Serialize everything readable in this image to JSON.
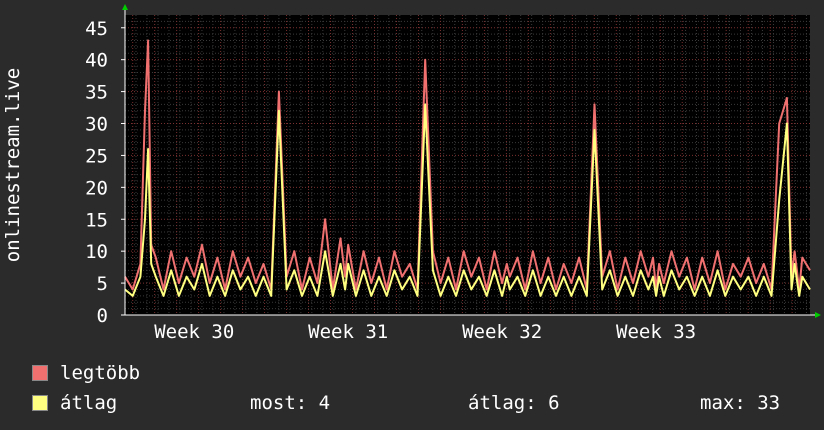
{
  "chart_data": {
    "type": "line",
    "ylabel": "onlinestream.live",
    "ylim": [
      0,
      47
    ],
    "yticks": [
      0,
      5,
      10,
      15,
      20,
      25,
      30,
      35,
      40,
      45
    ],
    "xlim": [
      28.55,
      33.0
    ],
    "xticks": [
      {
        "value": 29.0,
        "label": "Week 30"
      },
      {
        "value": 30.0,
        "label": "Week 31"
      },
      {
        "value": 31.0,
        "label": "Week 32"
      },
      {
        "value": 32.0,
        "label": "Week 33"
      }
    ],
    "series": [
      {
        "name": "legtöbb",
        "color": "#f07070",
        "x": [
          28.55,
          28.6,
          28.65,
          28.68,
          28.7,
          28.72,
          28.75,
          28.8,
          28.85,
          28.9,
          28.95,
          29.0,
          29.05,
          29.1,
          29.15,
          29.2,
          29.25,
          29.3,
          29.35,
          29.4,
          29.45,
          29.5,
          29.55,
          29.6,
          29.65,
          29.7,
          29.75,
          29.8,
          29.85,
          29.9,
          29.95,
          29.98,
          30.0,
          30.05,
          30.1,
          30.15,
          30.2,
          30.25,
          30.3,
          30.35,
          30.4,
          30.45,
          30.5,
          30.55,
          30.6,
          30.65,
          30.7,
          30.75,
          30.8,
          30.85,
          30.9,
          30.95,
          31.0,
          31.03,
          31.05,
          31.1,
          31.15,
          31.2,
          31.25,
          31.3,
          31.35,
          31.4,
          31.45,
          31.5,
          31.55,
          31.6,
          31.65,
          31.7,
          31.75,
          31.8,
          31.85,
          31.9,
          31.95,
          31.98,
          32.0,
          32.02,
          32.05,
          32.1,
          32.15,
          32.2,
          32.25,
          32.3,
          32.35,
          32.4,
          32.45,
          32.5,
          32.55,
          32.6,
          32.65,
          32.7,
          32.75,
          32.8,
          32.85,
          32.88,
          32.9,
          32.93,
          32.95,
          33.0
        ],
        "y": [
          6,
          4,
          8,
          32,
          43,
          11,
          9,
          4,
          10,
          5,
          9,
          6,
          11,
          5,
          9,
          4,
          10,
          6,
          9,
          5,
          8,
          4,
          35,
          6,
          10,
          4,
          9,
          5,
          15,
          4,
          12,
          6,
          11,
          4,
          10,
          5,
          9,
          4,
          10,
          6,
          8,
          4,
          40,
          10,
          5,
          9,
          4,
          10,
          6,
          9,
          4,
          10,
          5,
          8,
          6,
          9,
          4,
          10,
          5,
          9,
          4,
          8,
          5,
          9,
          4,
          33,
          6,
          10,
          4,
          9,
          5,
          10,
          6,
          9,
          4,
          8,
          5,
          10,
          6,
          9,
          4,
          9,
          5,
          10,
          4,
          8,
          6,
          9,
          5,
          8,
          4,
          30,
          34,
          6,
          10,
          4,
          9,
          7
        ]
      },
      {
        "name": "átlag",
        "color": "#ffff80",
        "x": [
          28.55,
          28.6,
          28.65,
          28.68,
          28.7,
          28.72,
          28.75,
          28.8,
          28.85,
          28.9,
          28.95,
          29.0,
          29.05,
          29.1,
          29.15,
          29.2,
          29.25,
          29.3,
          29.35,
          29.4,
          29.45,
          29.5,
          29.55,
          29.6,
          29.65,
          29.7,
          29.75,
          29.8,
          29.85,
          29.9,
          29.95,
          29.98,
          30.0,
          30.05,
          30.1,
          30.15,
          30.2,
          30.25,
          30.3,
          30.35,
          30.4,
          30.45,
          30.5,
          30.55,
          30.6,
          30.65,
          30.7,
          30.75,
          30.8,
          30.85,
          30.9,
          30.95,
          31.0,
          31.03,
          31.05,
          31.1,
          31.15,
          31.2,
          31.25,
          31.3,
          31.35,
          31.4,
          31.45,
          31.5,
          31.55,
          31.6,
          31.65,
          31.7,
          31.75,
          31.8,
          31.85,
          31.9,
          31.95,
          31.98,
          32.0,
          32.02,
          32.05,
          32.1,
          32.15,
          32.2,
          32.25,
          32.3,
          32.35,
          32.4,
          32.45,
          32.5,
          32.55,
          32.6,
          32.65,
          32.7,
          32.75,
          32.8,
          32.85,
          32.88,
          32.9,
          32.93,
          32.95,
          33.0
        ],
        "y": [
          4,
          3,
          6,
          15,
          26,
          8,
          6,
          3,
          7,
          3,
          6,
          4,
          8,
          3,
          6,
          3,
          7,
          4,
          6,
          3,
          6,
          3,
          32,
          4,
          7,
          3,
          6,
          3,
          10,
          3,
          8,
          4,
          8,
          3,
          7,
          3,
          6,
          3,
          7,
          4,
          6,
          3,
          33,
          7,
          3,
          6,
          3,
          7,
          4,
          6,
          3,
          7,
          3,
          6,
          4,
          6,
          3,
          7,
          3,
          6,
          3,
          6,
          3,
          6,
          3,
          29,
          4,
          7,
          3,
          6,
          3,
          7,
          4,
          6,
          3,
          6,
          3,
          7,
          4,
          6,
          3,
          6,
          3,
          7,
          3,
          6,
          4,
          6,
          3,
          6,
          3,
          18,
          30,
          4,
          8,
          3,
          6,
          4
        ]
      }
    ]
  },
  "legend": [
    {
      "label": "legtöbb",
      "color": "#f07070"
    },
    {
      "label": "átlag",
      "color": "#ffff80"
    }
  ],
  "stats": {
    "now": "most: 4",
    "avg": "átlag: 6",
    "max": "max: 33"
  }
}
